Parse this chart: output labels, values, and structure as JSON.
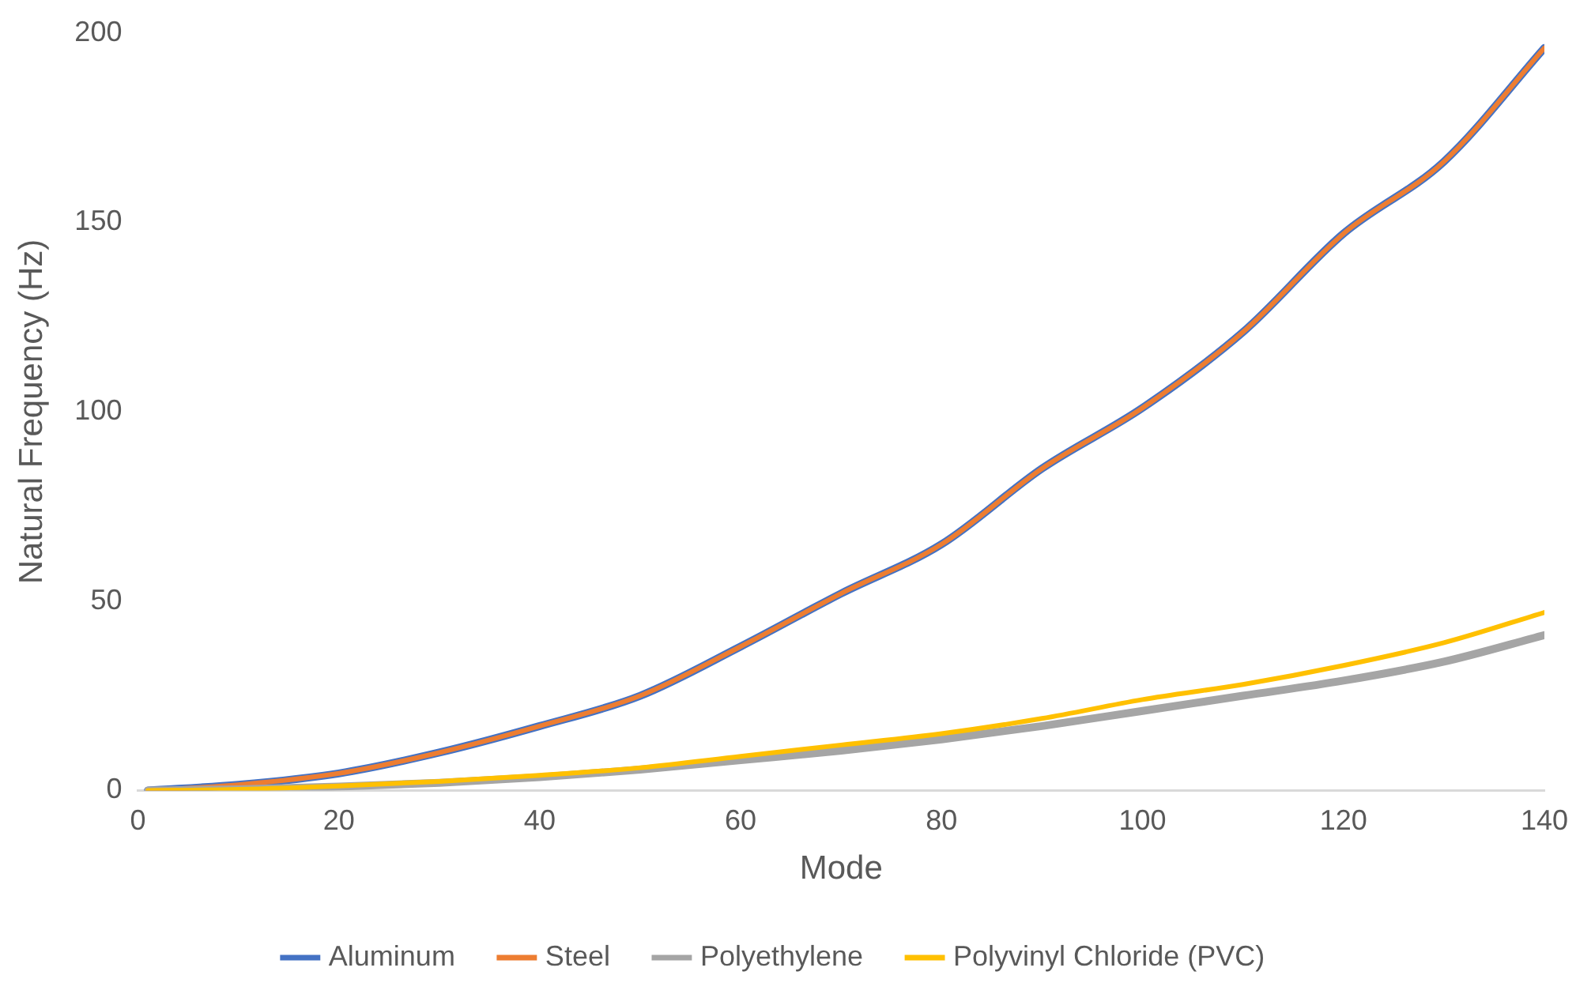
{
  "chart_data": {
    "type": "line",
    "xlabel": "Mode",
    "ylabel": "Natural Frequency (Hz)",
    "xlim": [
      0,
      140
    ],
    "xticks": [
      0,
      20,
      40,
      60,
      80,
      100,
      120,
      140
    ],
    "ylim": [
      0,
      200
    ],
    "yticks": [
      0,
      50,
      100,
      150,
      200
    ],
    "grid": false,
    "legend": "bottom",
    "marker": "none",
    "line_style": "solid",
    "x": [
      1,
      10,
      20,
      30,
      40,
      50,
      60,
      70,
      80,
      90,
      100,
      110,
      120,
      130,
      140
    ],
    "series": [
      {
        "name": "Aluminum",
        "color": "#4472c4",
        "values": [
          0,
          1.5,
          4.5,
          10,
          17,
          25,
          38,
          52,
          65,
          85,
          101,
          121,
          147,
          166,
          196
        ]
      },
      {
        "name": "Steel",
        "color": "#ed7d31",
        "values": [
          0,
          1.5,
          4.5,
          10,
          17,
          25,
          38,
          52,
          65,
          85,
          101,
          121,
          147,
          166,
          196
        ]
      },
      {
        "name": "Polyethylene",
        "color": "#a5a5a5",
        "values": [
          0,
          0.3,
          1,
          2,
          3.5,
          5.5,
          8,
          10.5,
          13.5,
          17,
          21,
          25,
          29,
          34,
          41
        ]
      },
      {
        "name": "Polyvinyl Chloride (PVC)",
        "color": "#ffc000",
        "values": [
          0,
          0.3,
          1.2,
          2.4,
          4,
          6,
          9,
          12,
          15,
          19,
          24,
          28,
          33,
          39,
          47
        ]
      }
    ]
  }
}
